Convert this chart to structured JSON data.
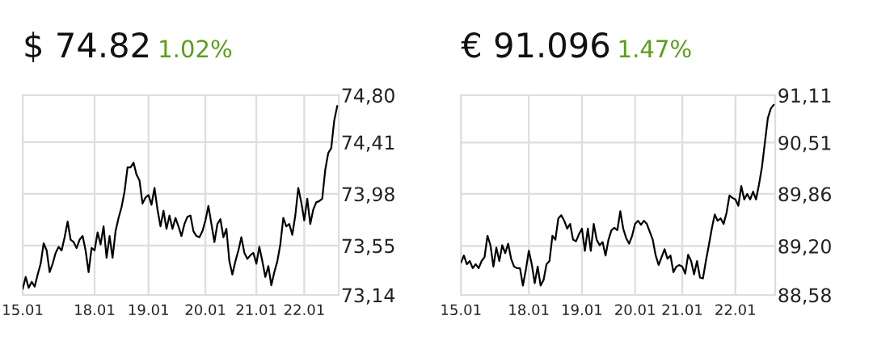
{
  "chart_data": [
    {
      "type": "line",
      "title": "$ 74.82",
      "subtitle": "1.02%",
      "grid": true,
      "categories": [
        "15.01",
        null,
        null,
        null,
        null,
        null,
        null,
        null,
        null,
        null,
        null,
        null,
        null,
        null,
        null,
        null,
        null,
        null,
        null,
        null,
        null,
        null,
        null,
        null,
        "18.01",
        null,
        null,
        null,
        null,
        null,
        null,
        null,
        null,
        null,
        null,
        null,
        null,
        null,
        null,
        null,
        null,
        null,
        "19.01",
        null,
        null,
        null,
        null,
        null,
        null,
        null,
        null,
        null,
        null,
        null,
        null,
        null,
        null,
        null,
        null,
        null,
        null,
        "20.01",
        null,
        null,
        null,
        null,
        null,
        null,
        null,
        null,
        null,
        null,
        null,
        null,
        null,
        null,
        null,
        null,
        "21.01",
        null,
        null,
        null,
        null,
        null,
        null,
        null,
        null,
        null,
        null,
        null,
        null,
        null,
        null,
        null,
        "22.01",
        null,
        null,
        null,
        null,
        null,
        null,
        null,
        null,
        null,
        null,
        null
      ],
      "series": [
        {
          "color": "#000000",
          "values": [
            73.19,
            73.29,
            73.2,
            73.25,
            73.21,
            73.31,
            73.4,
            73.57,
            73.51,
            73.33,
            73.4,
            73.49,
            73.54,
            73.51,
            73.62,
            73.75,
            73.6,
            73.58,
            73.53,
            73.6,
            73.63,
            73.51,
            73.33,
            73.53,
            73.51,
            73.66,
            73.56,
            73.71,
            73.45,
            73.63,
            73.45,
            73.67,
            73.78,
            73.87,
            74.0,
            74.2,
            74.2,
            74.24,
            74.14,
            74.09,
            73.9,
            73.95,
            73.97,
            73.89,
            74.03,
            73.85,
            73.71,
            73.84,
            73.69,
            73.8,
            73.69,
            73.78,
            73.71,
            73.63,
            73.73,
            73.79,
            73.8,
            73.67,
            73.63,
            73.62,
            73.67,
            73.76,
            73.88,
            73.73,
            73.58,
            73.73,
            73.77,
            73.62,
            73.69,
            73.42,
            73.31,
            73.42,
            73.51,
            73.62,
            73.49,
            73.44,
            73.47,
            73.49,
            73.4,
            73.54,
            73.42,
            73.29,
            73.38,
            73.22,
            73.33,
            73.42,
            73.56,
            73.78,
            73.71,
            73.73,
            73.64,
            73.8,
            74.03,
            73.91,
            73.76,
            73.94,
            73.73,
            73.85,
            73.91,
            73.92,
            73.94,
            74.18,
            74.32,
            74.36,
            74.59,
            74.71
          ]
        }
      ],
      "ylim": [
        73.14,
        74.8
      ],
      "yticks": [
        {
          "value": 73.14,
          "label": "73,14"
        },
        {
          "value": 73.55,
          "label": "73,55"
        },
        {
          "value": 73.98,
          "label": "73,98"
        },
        {
          "value": 74.41,
          "label": "74,41"
        },
        {
          "value": 74.8,
          "label": "74,80"
        }
      ]
    },
    {
      "type": "line",
      "title": "€ 91.096",
      "subtitle": "1.47%",
      "grid": true,
      "categories": [
        "15.01",
        null,
        null,
        null,
        null,
        null,
        null,
        null,
        null,
        null,
        null,
        null,
        null,
        null,
        null,
        null,
        null,
        null,
        null,
        null,
        null,
        null,
        null,
        "18.01",
        null,
        null,
        null,
        null,
        null,
        null,
        null,
        null,
        null,
        null,
        null,
        null,
        null,
        null,
        null,
        null,
        null,
        "19.01",
        null,
        null,
        null,
        null,
        null,
        null,
        null,
        null,
        null,
        null,
        null,
        null,
        null,
        null,
        null,
        null,
        null,
        "20.01",
        null,
        null,
        null,
        null,
        null,
        null,
        null,
        null,
        null,
        null,
        null,
        null,
        null,
        null,
        null,
        "21.01",
        null,
        null,
        null,
        null,
        null,
        null,
        null,
        null,
        null,
        null,
        null,
        null,
        null,
        null,
        null,
        null,
        null,
        "22.01",
        null,
        null,
        null,
        null,
        null,
        null,
        null,
        null,
        null,
        null,
        null,
        null,
        null
      ],
      "series": [
        {
          "color": "#000000",
          "values": [
            88.99,
            89.08,
            88.97,
            89.01,
            88.92,
            88.97,
            88.92,
            89.01,
            89.06,
            89.33,
            89.21,
            88.94,
            89.18,
            89.01,
            89.21,
            89.11,
            89.23,
            89.04,
            88.94,
            88.92,
            88.92,
            88.7,
            88.9,
            89.14,
            88.97,
            88.73,
            88.94,
            88.7,
            88.77,
            88.97,
            89.01,
            89.33,
            89.28,
            89.55,
            89.59,
            89.52,
            89.42,
            89.48,
            89.28,
            89.26,
            89.35,
            89.42,
            89.14,
            89.42,
            89.14,
            89.48,
            89.28,
            89.21,
            89.25,
            89.08,
            89.28,
            89.4,
            89.43,
            89.4,
            89.64,
            89.42,
            89.3,
            89.23,
            89.33,
            89.48,
            89.52,
            89.47,
            89.52,
            89.48,
            89.38,
            89.28,
            89.08,
            88.96,
            89.06,
            89.16,
            89.04,
            89.08,
            88.87,
            88.94,
            88.96,
            88.94,
            88.85,
            89.09,
            89.01,
            88.84,
            89.01,
            88.8,
            88.79,
            89.01,
            89.21,
            89.42,
            89.6,
            89.52,
            89.55,
            89.48,
            89.62,
            89.84,
            89.81,
            89.79,
            89.71,
            89.96,
            89.79,
            89.86,
            89.79,
            89.89,
            89.79,
            89.98,
            90.2,
            90.51,
            90.82,
            90.94,
            90.99
          ]
        }
      ],
      "ylim": [
        88.58,
        91.11
      ],
      "yticks": [
        {
          "value": 88.58,
          "label": "88,58"
        },
        {
          "value": 89.2,
          "label": "89,20"
        },
        {
          "value": 89.86,
          "label": "89,86"
        },
        {
          "value": 90.51,
          "label": "90,51"
        },
        {
          "value": 91.11,
          "label": "91,11"
        }
      ]
    }
  ]
}
